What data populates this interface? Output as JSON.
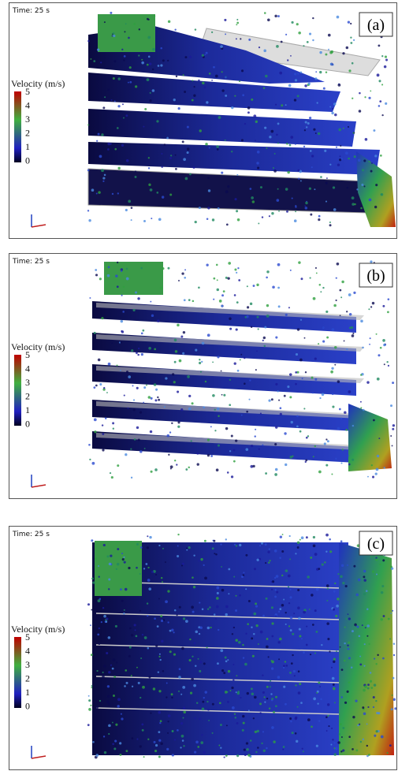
{
  "panels": [
    {
      "time": "Time: 25 s",
      "label": "(a)",
      "legend_title": "Velocity (m/s)",
      "legend_ticks": [
        5,
        4,
        3,
        2,
        1,
        0
      ]
    },
    {
      "time": "Time: 25 s",
      "label": "(b)",
      "legend_title": "Velocity (m/s)",
      "legend_ticks": [
        5,
        4,
        3,
        2,
        1,
        0
      ]
    },
    {
      "time": "Time: 25 s",
      "label": "(c)",
      "legend_title": "Velocity (m/s)",
      "legend_ticks": [
        5,
        4,
        3,
        2,
        1,
        0
      ]
    }
  ]
}
